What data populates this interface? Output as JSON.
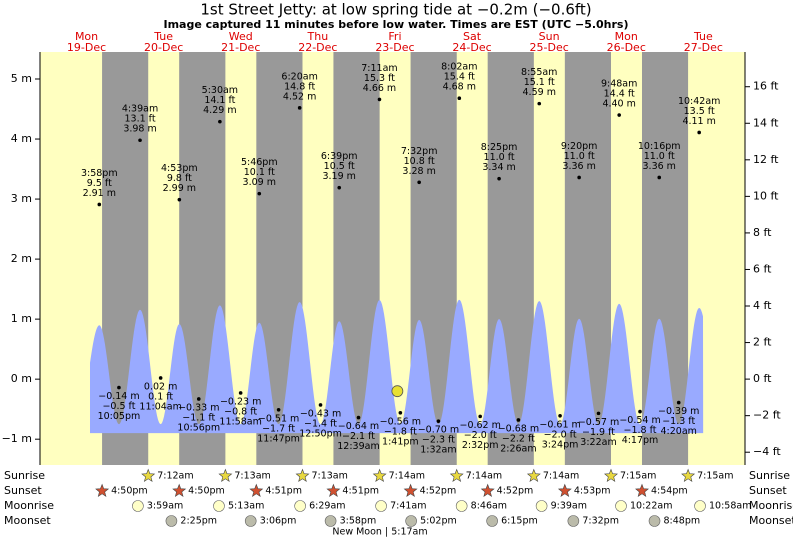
{
  "chart_data": {
    "type": "tide",
    "title": "1st Street Jetty: at low  spring tide at −0.2m (−0.6ft)",
    "subtitle": "Image captured 11 minutes before low water. Times are EST (UTC −5.0hrs)",
    "current_height_m": -0.2,
    "ylim": [
      -1.43,
      5.45
    ],
    "yticks": [
      {
        "value": -1,
        "label": "−1 m"
      },
      {
        "value": 0,
        "label": "0 m"
      },
      {
        "value": 1,
        "label": "1 m"
      },
      {
        "value": 2,
        "label": "2 m"
      },
      {
        "value": 3,
        "label": "3 m"
      },
      {
        "value": 4,
        "label": "4 m"
      },
      {
        "value": 5,
        "label": "5 m"
      }
    ],
    "y2lim": [
      -4.7,
      17.9
    ],
    "y2ticks": [
      {
        "value": -4,
        "label": "−4 ft"
      },
      {
        "value": -2,
        "label": "−2 ft"
      },
      {
        "value": 0,
        "label": "0 ft"
      },
      {
        "value": 2,
        "label": "2 ft"
      },
      {
        "value": 4,
        "label": "4 ft"
      },
      {
        "value": 6,
        "label": "6 ft"
      },
      {
        "value": 8,
        "label": "8 ft"
      },
      {
        "value": 10,
        "label": "10 ft"
      },
      {
        "value": 12,
        "label": "12 ft"
      },
      {
        "value": 14,
        "label": "14 ft"
      },
      {
        "value": 16,
        "label": "16 ft"
      }
    ],
    "row_labels": {
      "sunrise": "Sunrise",
      "sunset": "Sunset",
      "moonrise": "Moonrise",
      "moonset": "Moonset"
    },
    "moon_phase": "New Moon | 5:17am",
    "days": [
      {
        "weekday": "Mon",
        "date": "19-Dec",
        "sunset": "4:50pm",
        "tides": [
          {
            "time": "3:58pm",
            "height_ft_label": "9.5 ft",
            "height_m": 2.91,
            "height_m_label": "2.91 m"
          },
          {
            "time": "10:05pm",
            "height_ft_label": "−0.5 ft",
            "height_m": -0.14,
            "height_m_label": "−0.14 m"
          }
        ]
      },
      {
        "weekday": "Tue",
        "date": "20-Dec",
        "sunrise": "7:12am",
        "sunset": "4:50pm",
        "moonrise": "3:59am",
        "moonset": "2:25pm",
        "tides": [
          {
            "time": "4:39am",
            "height_ft_label": "13.1 ft",
            "height_m": 3.98,
            "height_m_label": "3.98 m"
          },
          {
            "time": "11:04am",
            "height_ft_label": "0.1 ft",
            "height_m": 0.02,
            "height_m_label": "0.02 m"
          },
          {
            "time": "4:53pm",
            "height_ft_label": "9.8 ft",
            "height_m": 2.99,
            "height_m_label": "2.99 m"
          },
          {
            "time": "10:56pm",
            "height_ft_label": "−1.1 ft",
            "height_m": -0.33,
            "height_m_label": "−0.33 m"
          }
        ]
      },
      {
        "weekday": "Wed",
        "date": "21-Dec",
        "sunrise": "7:13am",
        "sunset": "4:51pm",
        "moonrise": "5:13am",
        "moonset": "3:06pm",
        "tides": [
          {
            "time": "5:30am",
            "height_ft_label": "14.1 ft",
            "height_m": 4.29,
            "height_m_label": "4.29 m"
          },
          {
            "time": "11:58am",
            "height_ft_label": "−0.8 ft",
            "height_m": -0.23,
            "height_m_label": "−0.23 m"
          },
          {
            "time": "5:46pm",
            "height_ft_label": "10.1 ft",
            "height_m": 3.09,
            "height_m_label": "3.09 m"
          },
          {
            "time": "11:47pm",
            "height_ft_label": "−1.7 ft",
            "height_m": -0.51,
            "height_m_label": "−0.51 m"
          }
        ]
      },
      {
        "weekday": "Thu",
        "date": "22-Dec",
        "sunrise": "7:13am",
        "sunset": "4:51pm",
        "moonrise": "6:29am",
        "moonset": "3:58pm",
        "tides": [
          {
            "time": "6:20am",
            "height_ft_label": "14.8 ft",
            "height_m": 4.52,
            "height_m_label": "4.52 m"
          },
          {
            "time": "12:50pm",
            "height_ft_label": "−1.4 ft",
            "height_m": -0.43,
            "height_m_label": "−0.43 m"
          },
          {
            "time": "6:39pm",
            "height_ft_label": "10.5 ft",
            "height_m": 3.19,
            "height_m_label": "3.19 m"
          }
        ]
      },
      {
        "weekday": "Fri",
        "date": "23-Dec",
        "sunrise": "7:14am",
        "sunset": "4:52pm",
        "moonrise": "7:41am",
        "moonset": "5:02pm",
        "tides": [
          {
            "time": "12:39am",
            "height_ft_label": "−2.1 ft",
            "height_m": -0.64,
            "height_m_label": "−0.64 m"
          },
          {
            "time": "7:11am",
            "height_ft_label": "15.3 ft",
            "height_m": 4.66,
            "height_m_label": "4.66 m"
          },
          {
            "time": "1:41pm",
            "height_ft_label": "−1.8 ft",
            "height_m": -0.56,
            "height_m_label": "−0.56 m"
          },
          {
            "time": "7:32pm",
            "height_ft_label": "10.8 ft",
            "height_m": 3.28,
            "height_m_label": "3.28 m"
          }
        ]
      },
      {
        "weekday": "Sat",
        "date": "24-Dec",
        "sunrise": "7:14am",
        "sunset": "4:52pm",
        "moonrise": "8:46am",
        "moonset": "6:15pm",
        "tides": [
          {
            "time": "1:32am",
            "height_ft_label": "−2.3 ft",
            "height_m": -0.7,
            "height_m_label": "−0.70 m"
          },
          {
            "time": "8:02am",
            "height_ft_label": "15.4 ft",
            "height_m": 4.68,
            "height_m_label": "4.68 m"
          },
          {
            "time": "2:32pm",
            "height_ft_label": "−2.0 ft",
            "height_m": -0.62,
            "height_m_label": "−0.62 m"
          },
          {
            "time": "8:25pm",
            "height_ft_label": "11.0 ft",
            "height_m": 3.34,
            "height_m_label": "3.34 m"
          }
        ]
      },
      {
        "weekday": "Sun",
        "date": "25-Dec",
        "sunrise": "7:14am",
        "sunset": "4:53pm",
        "moonrise": "9:39am",
        "moonset": "7:32pm",
        "tides": [
          {
            "time": "2:26am",
            "height_ft_label": "−2.2 ft",
            "height_m": -0.68,
            "height_m_label": "−0.68 m"
          },
          {
            "time": "8:55am",
            "height_ft_label": "15.1 ft",
            "height_m": 4.59,
            "height_m_label": "4.59 m"
          },
          {
            "time": "3:24pm",
            "height_ft_label": "−2.0 ft",
            "height_m": -0.61,
            "height_m_label": "−0.61 m"
          },
          {
            "time": "9:20pm",
            "height_ft_label": "11.0 ft",
            "height_m": 3.36,
            "height_m_label": "3.36 m"
          }
        ]
      },
      {
        "weekday": "Mon",
        "date": "26-Dec",
        "sunrise": "7:15am",
        "sunset": "4:54pm",
        "moonrise": "10:22am",
        "moonset": "8:48pm",
        "tides": [
          {
            "time": "3:22am",
            "height_ft_label": "−1.9 ft",
            "height_m": -0.57,
            "height_m_label": "−0.57 m"
          },
          {
            "time": "9:48am",
            "height_ft_label": "14.4 ft",
            "height_m": 4.4,
            "height_m_label": "4.40 m"
          },
          {
            "time": "4:17pm",
            "height_ft_label": "−1.8 ft",
            "height_m": -0.54,
            "height_m_label": "−0.54 m"
          },
          {
            "time": "10:16pm",
            "height_ft_label": "11.0 ft",
            "height_m": 3.36,
            "height_m_label": "3.36 m"
          }
        ]
      },
      {
        "weekday": "Tue",
        "date": "27-Dec",
        "sunrise": "7:15am",
        "moonrise": "10:58am",
        "tides": [
          {
            "time": "4:20am",
            "height_ft_label": "−1.3 ft",
            "height_m": -0.39,
            "height_m_label": "−0.39 m"
          },
          {
            "time": "10:42am",
            "height_ft_label": "13.5 ft",
            "height_m": 4.11,
            "height_m_label": "4.11 m"
          }
        ]
      }
    ]
  }
}
